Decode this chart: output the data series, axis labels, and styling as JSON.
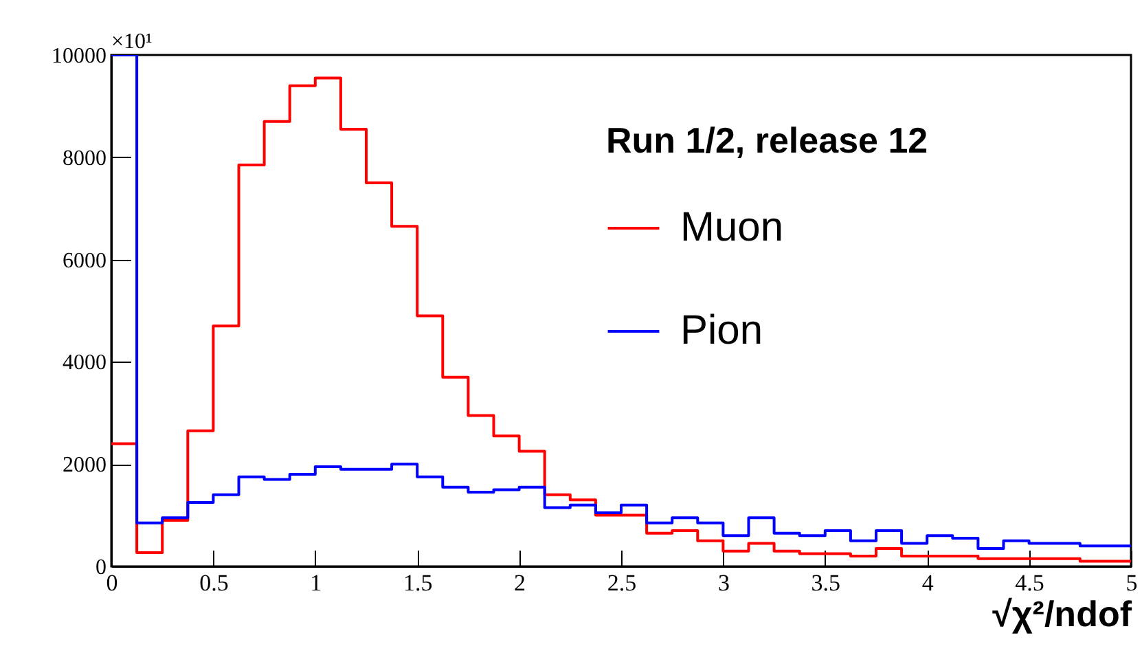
{
  "chart_data": {
    "type": "histogram",
    "xlabel": "√χ²/ndof",
    "legend_title": "Run 1/2, release 12",
    "legend": "top right",
    "annotations": [
      "×10¹"
    ],
    "bins": [
      0,
      0.125,
      0.25,
      0.375,
      0.5,
      0.625,
      0.75,
      0.875,
      1,
      1.125,
      1.25,
      1.375,
      1.5,
      1.625,
      1.75,
      1.875,
      2,
      2.125,
      2.25,
      2.375,
      2.5,
      2.625,
      2.75,
      2.875,
      3,
      3.125,
      3.25,
      3.375,
      3.5,
      3.625,
      3.75,
      3.875,
      4,
      4.125,
      4.25,
      4.375,
      4.5,
      4.625,
      4.75,
      4.875,
      5
    ],
    "series": [
      {
        "name": "Muon",
        "color": "#ff0000",
        "values": [
          2400,
          270,
          900,
          2650,
          4700,
          7850,
          8700,
          9400,
          9550,
          8550,
          7500,
          6650,
          4900,
          3700,
          2950,
          2550,
          2250,
          1400,
          1300,
          1000,
          1000,
          650,
          700,
          500,
          300,
          450,
          300,
          250,
          250,
          200,
          350,
          200,
          200,
          200,
          150,
          150,
          150,
          150,
          100,
          100
        ]
      },
      {
        "name": "Pion",
        "color": "#0000ff",
        "values": [
          10000,
          850,
          950,
          1250,
          1400,
          1750,
          1700,
          1800,
          1950,
          1900,
          1900,
          2000,
          1750,
          1550,
          1450,
          1500,
          1550,
          1150,
          1200,
          1050,
          1200,
          850,
          950,
          850,
          600,
          950,
          650,
          600,
          700,
          500,
          700,
          450,
          600,
          550,
          350,
          500,
          450,
          450,
          400,
          400
        ]
      }
    ],
    "xlim": [
      0,
      5
    ],
    "ylim": [
      0,
      10000
    ],
    "xticks": [
      0,
      0.5,
      1,
      1.5,
      2,
      2.5,
      3,
      3.5,
      4,
      4.5,
      5
    ],
    "yticks": [
      0,
      2000,
      4000,
      6000,
      8000,
      10000
    ],
    "grid": false
  }
}
